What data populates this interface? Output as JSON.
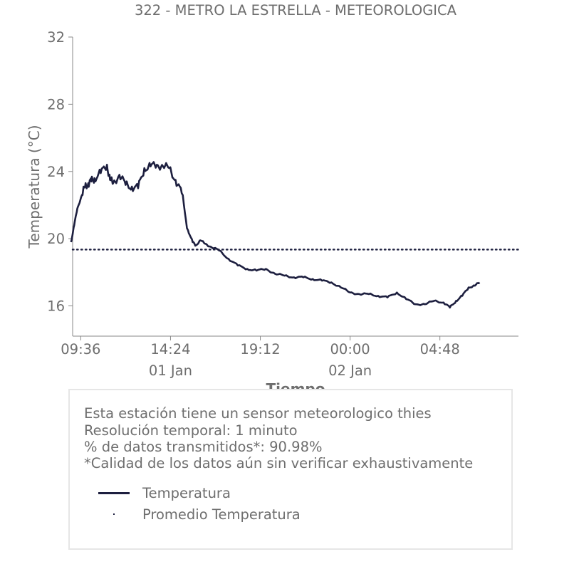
{
  "chart_data": {
    "type": "line",
    "title": "322 - METRO LA ESTRELLA - METEOROLOGICA",
    "xlabel": "Tiempo",
    "ylabel": "Temperatura (°C)",
    "ylim": [
      14.2,
      32
    ],
    "yticks": [
      "16",
      "20",
      "24",
      "28",
      "32"
    ],
    "xticks": [
      "09:36",
      "14:24",
      "19:12",
      "00:00",
      "04:48"
    ],
    "xticks_secondary": [
      "01 Jan",
      "02 Jan"
    ],
    "xlim": [
      "2023-01-01T09:10",
      "2023-01-02T09:00"
    ],
    "grid": false,
    "series": [
      {
        "name": "Temperatura",
        "color": "#1d1f3f",
        "x": [
          "2023-01-01T09:05",
          "2023-01-01T09:15",
          "2023-01-01T09:25",
          "2023-01-01T09:40",
          "2023-01-01T09:50",
          "2023-01-01T10:00",
          "2023-01-01T10:10",
          "2023-01-01T10:20",
          "2023-01-01T10:40",
          "2023-01-01T11:00",
          "2023-01-01T11:10",
          "2023-01-01T11:20",
          "2023-01-01T11:40",
          "2023-01-01T12:00",
          "2023-01-01T12:20",
          "2023-01-01T12:40",
          "2023-01-01T13:00",
          "2023-01-01T13:20",
          "2023-01-01T13:40",
          "2023-01-01T14:00",
          "2023-01-01T14:20",
          "2023-01-01T14:40",
          "2023-01-01T15:00",
          "2023-01-01T15:20",
          "2023-01-01T15:35",
          "2023-01-01T15:45",
          "2023-01-01T16:00",
          "2023-01-01T16:15",
          "2023-01-01T16:35",
          "2023-01-01T17:00",
          "2023-01-01T17:30",
          "2023-01-01T18:00",
          "2023-01-01T18:30",
          "2023-01-01T19:00",
          "2023-01-01T19:30",
          "2023-01-01T20:00",
          "2023-01-01T20:30",
          "2023-01-01T21:00",
          "2023-01-01T21:30",
          "2023-01-01T22:00",
          "2023-01-01T22:30",
          "2023-01-01T23:00",
          "2023-01-01T23:30",
          "2023-01-02T00:00",
          "2023-01-02T00:30",
          "2023-01-02T01:00",
          "2023-01-02T01:30",
          "2023-01-02T02:00",
          "2023-01-02T02:30",
          "2023-01-02T03:00",
          "2023-01-02T03:30",
          "2023-01-02T04:00",
          "2023-01-02T04:30",
          "2023-01-02T05:00",
          "2023-01-02T05:20",
          "2023-01-02T05:40",
          "2023-01-02T06:00",
          "2023-01-02T06:20",
          "2023-01-02T06:40",
          "2023-01-02T06:55"
        ],
        "values": [
          19.8,
          20.8,
          21.8,
          22.6,
          23.1,
          23.3,
          23.4,
          23.6,
          23.9,
          24.4,
          23.5,
          23.3,
          23.8,
          23.2,
          23.1,
          23.0,
          24.2,
          24.3,
          24.4,
          24.3,
          24.2,
          23.5,
          22.7,
          20.5,
          19.8,
          19.6,
          19.9,
          19.7,
          19.5,
          19.3,
          18.8,
          18.4,
          18.2,
          18.1,
          18.2,
          17.9,
          17.8,
          17.7,
          17.7,
          17.6,
          17.5,
          17.4,
          17.1,
          16.8,
          16.7,
          16.7,
          16.6,
          16.5,
          16.8,
          16.4,
          16.1,
          16.1,
          16.3,
          16.2,
          15.9,
          16.3,
          16.6,
          17.1,
          17.2,
          17.4
        ]
      },
      {
        "name": "Promedio Temperatura",
        "color": "#1d1f3f",
        "style": "dotted",
        "constant": 19.35
      }
    ]
  },
  "info": {
    "line1": "Esta estación tiene un sensor meteorologico thies",
    "line2": "Resolución temporal: 1 minuto",
    "line3": "% de datos transmitidos*: 90.98%",
    "line4": "*Calidad de los datos aún sin verificar exhaustivamente"
  },
  "legend": {
    "item1": "Temperatura",
    "item2": "Promedio Temperatura"
  }
}
